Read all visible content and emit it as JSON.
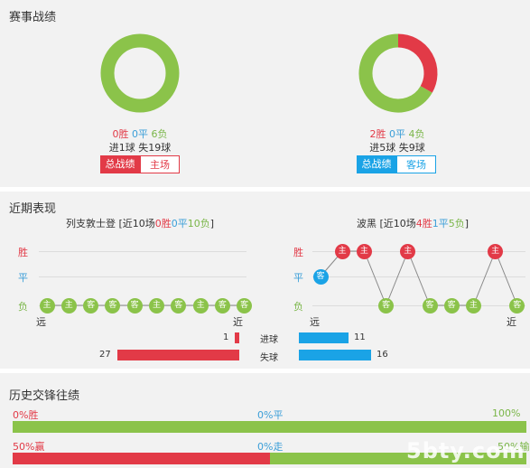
{
  "sections": {
    "record_title": "赛事战绩",
    "recent_title": "近期表现",
    "history_title": "历史交锋往绩"
  },
  "colors": {
    "red": "#e23a47",
    "blue": "#3c9fd8",
    "green": "#8bc34a",
    "cyan": "#1aa3e6"
  },
  "home_record": {
    "wins": "0胜",
    "draws": "0平",
    "losses": "6负",
    "goals": "进1球 失19球",
    "win_frac": 0.0,
    "draw_frac": 0.0,
    "loss_frac": 1.0,
    "tab_all": "总战绩",
    "tab_venue": "主场"
  },
  "away_record": {
    "wins": "2胜",
    "draws": "0平",
    "losses": "4负",
    "goals": "进5球 失9球",
    "win_frac": 0.333,
    "draw_frac": 0.0,
    "loss_frac": 0.667,
    "tab_all": "总战绩",
    "tab_venue": "客场"
  },
  "recent": {
    "legend_win": "胜",
    "legend_draw": "平",
    "legend_loss": "负",
    "far": "远",
    "near": "近",
    "home": {
      "name": "列支敦士登",
      "summary_pre": "[近10场",
      "w": "0胜",
      "d": "0平",
      "l": "10负",
      "summary_post": "]",
      "results": [
        "L",
        "L",
        "L",
        "L",
        "L",
        "L",
        "L",
        "L",
        "L",
        "L"
      ],
      "venues": [
        "主",
        "主",
        "客",
        "客",
        "客",
        "主",
        "客",
        "主",
        "客",
        "客"
      ]
    },
    "away": {
      "name": "波黑",
      "summary_pre": "[近10场",
      "w": "4胜",
      "d": "1平",
      "l": "5负",
      "summary_post": "]",
      "results": [
        "D",
        "W",
        "W",
        "L",
        "W",
        "L",
        "L",
        "L",
        "W",
        "L"
      ],
      "venues": [
        "客",
        "主",
        "主",
        "客",
        "主",
        "客",
        "客",
        "主",
        "主",
        "客"
      ]
    },
    "goals_for_label": "进球",
    "goals_against_label": "失球",
    "home_gf": 1,
    "home_ga": 27,
    "away_gf": 11,
    "away_ga": 16
  },
  "history": {
    "row1_left": "0%胜",
    "row1_mid": "0%平",
    "row1_right": "100%负",
    "row1_left_frac": 0.0,
    "row1_mid_frac": 0.0,
    "row1_right_frac": 1.0,
    "row2_left": "50%赢",
    "row2_mid": "0%走",
    "row2_right": "50%输",
    "row2_left_frac": 0.5,
    "row2_mid_frac": 0.0,
    "row2_right_frac": 0.5
  },
  "watermark": "5bty.com"
}
